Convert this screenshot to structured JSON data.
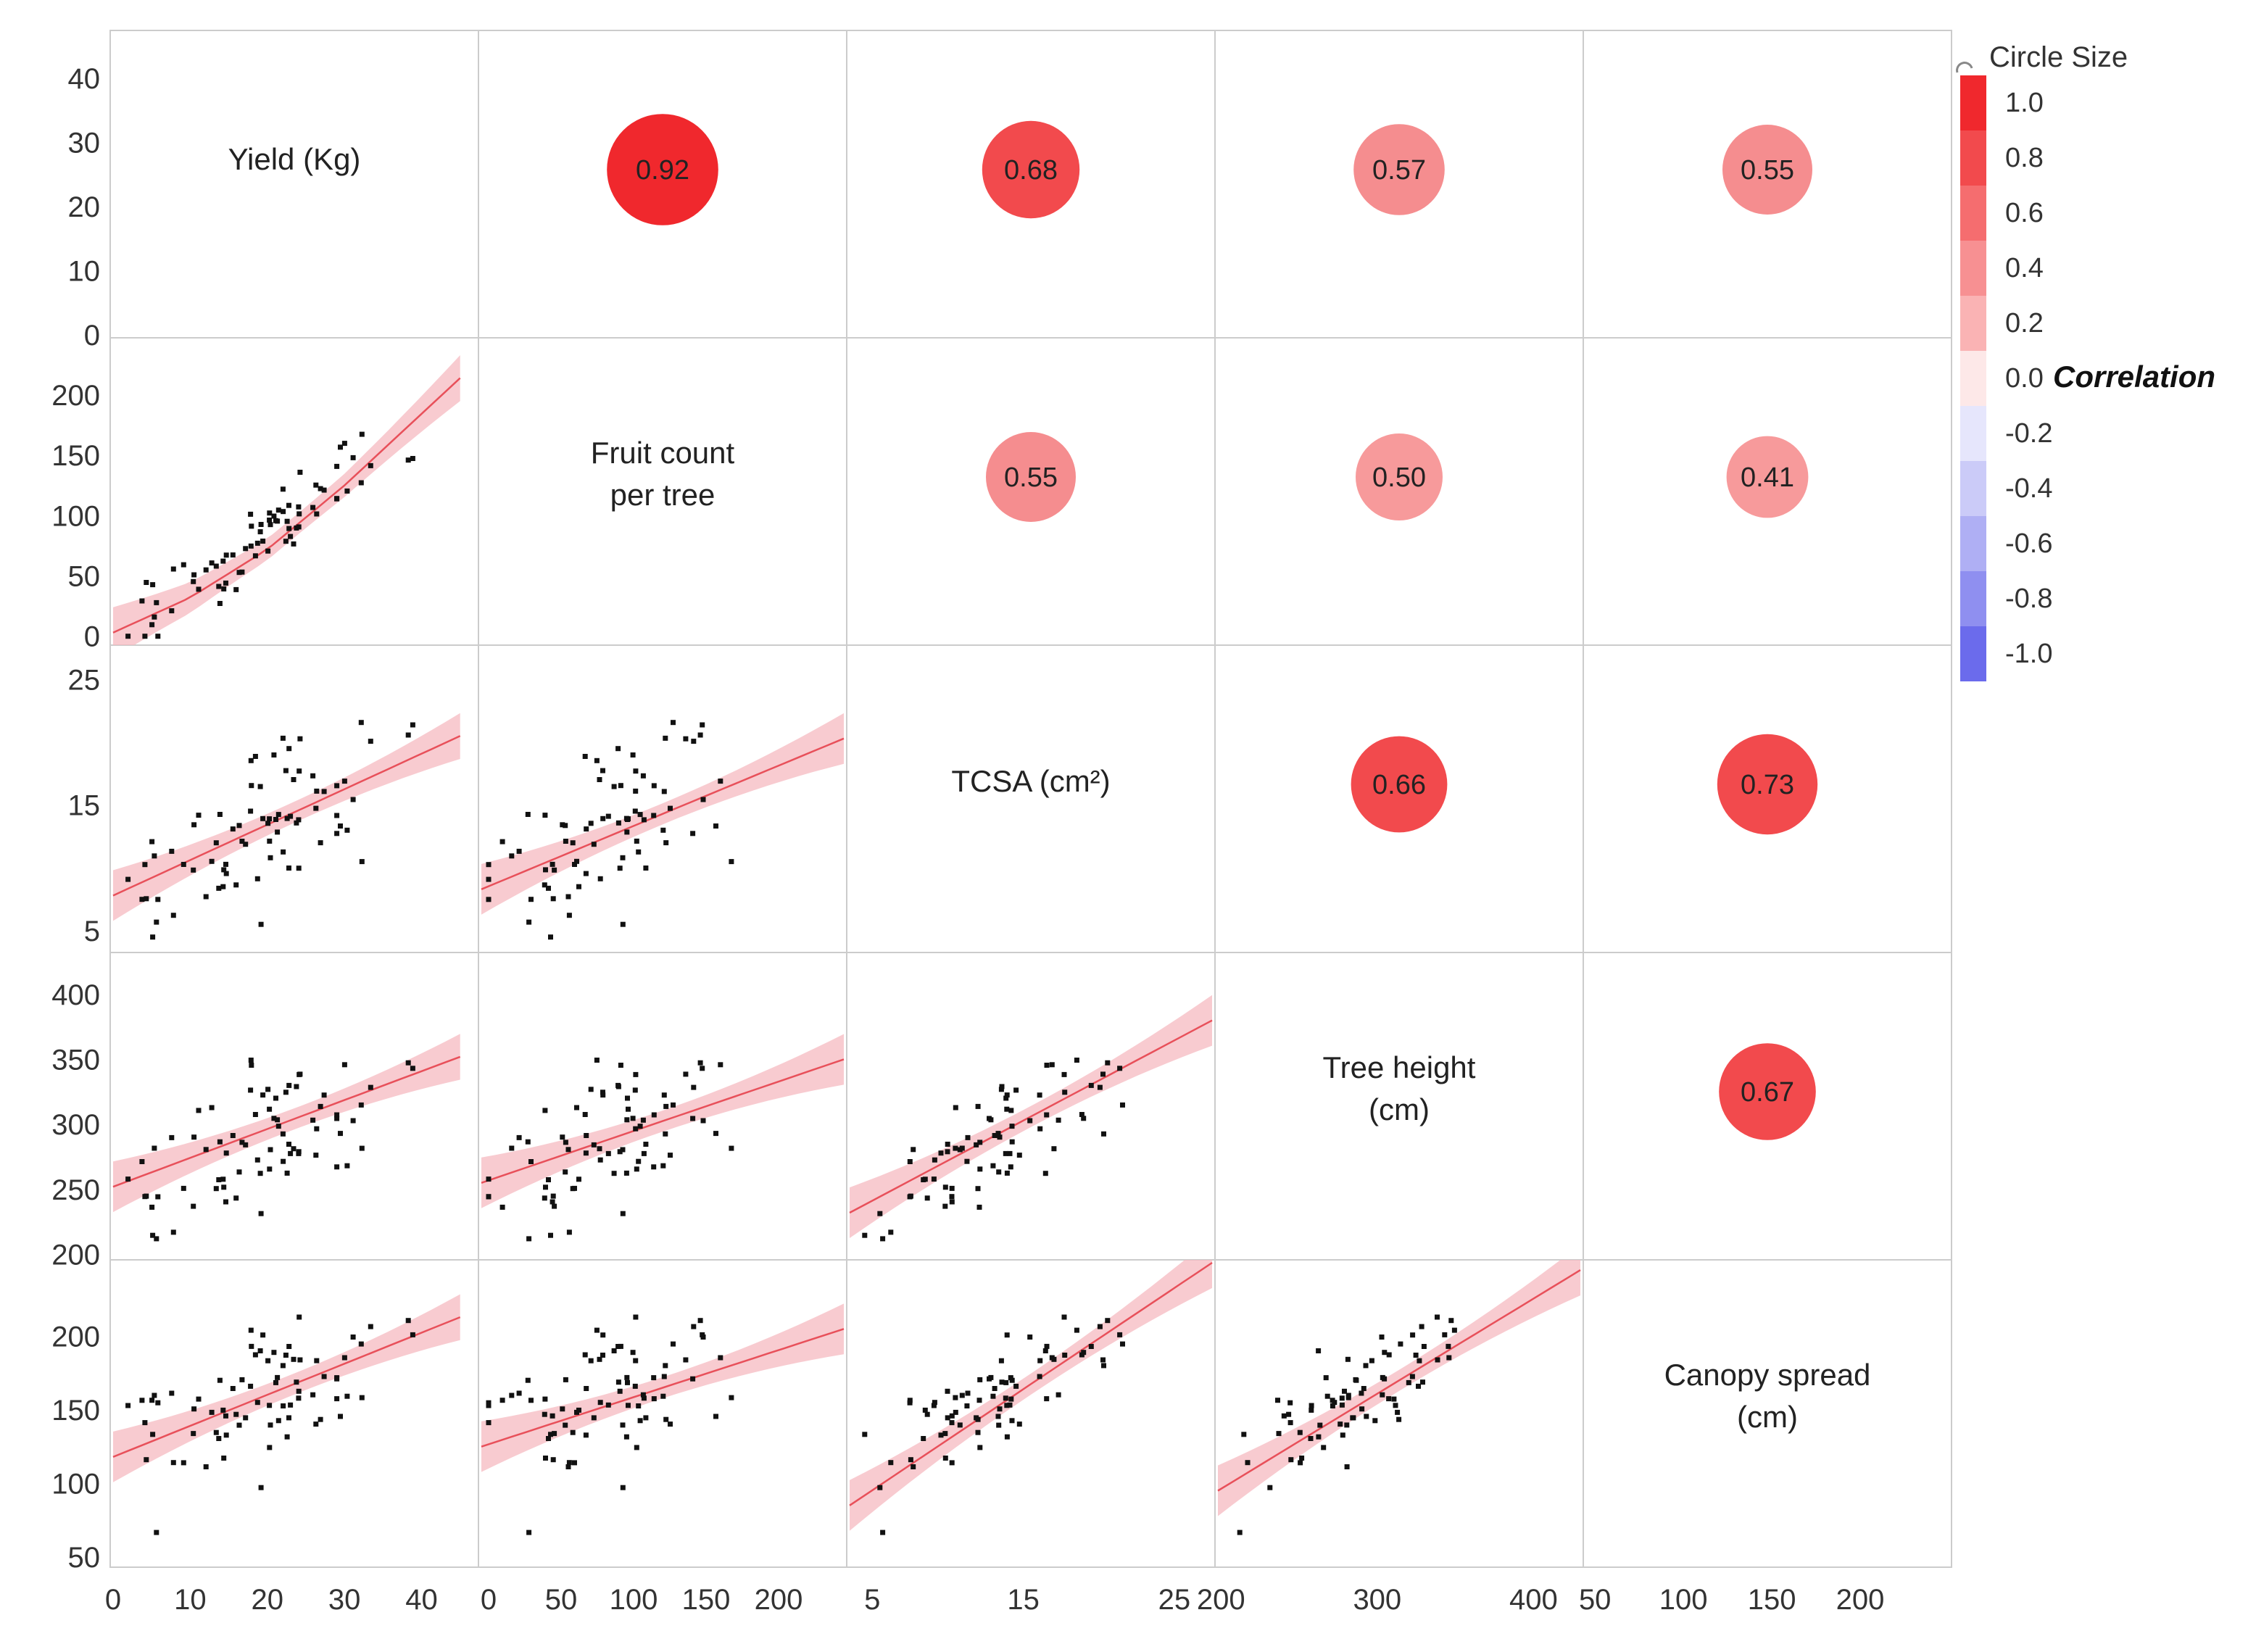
{
  "chart_data": {
    "type": "scatter-matrix",
    "variables": [
      {
        "name": "Yield (Kg)",
        "lines": [
          "Yield (Kg)"
        ],
        "range": [
          0,
          47
        ],
        "ticks": [
          0,
          10,
          20,
          30,
          40
        ]
      },
      {
        "name": "Fruit count per tree",
        "lines": [
          "Fruit count",
          "per tree"
        ],
        "range": [
          -5,
          245
        ],
        "ticks": [
          0,
          50,
          100,
          150,
          200
        ]
      },
      {
        "name": "TCSA (cm2)",
        "lines": [
          "TCSA (cm²)"
        ],
        "range": [
          3.5,
          27.5
        ],
        "ticks": [
          5,
          15,
          25
        ],
        "tick_labels_y": [
          "5",
          "15",
          "25"
        ]
      },
      {
        "name": "Tree height (cm)",
        "lines": [
          "Tree height",
          "(cm)"
        ],
        "range": [
          198,
          430
        ],
        "ticks": [
          200,
          250,
          300,
          350,
          400
        ],
        "x_tick_labels": [
          "200",
          "300",
          "400"
        ],
        "x_ticks": [
          200,
          300,
          400
        ]
      },
      {
        "name": "Canopy spread (cm)",
        "lines": [
          "Canopy spread",
          "(cm)"
        ],
        "range": [
          45,
          250
        ],
        "ticks": [
          50,
          100,
          150,
          200
        ],
        "y_tick_labels": [
          "50",
          "100",
          "150",
          "200"
        ]
      }
    ],
    "correlations": [
      {
        "row": 0,
        "col": 1,
        "value": 0.92,
        "label": "0.92"
      },
      {
        "row": 0,
        "col": 2,
        "value": 0.68,
        "label": "0.68"
      },
      {
        "row": 0,
        "col": 3,
        "value": 0.57,
        "label": "0.57"
      },
      {
        "row": 0,
        "col": 4,
        "value": 0.55,
        "label": "0.55"
      },
      {
        "row": 1,
        "col": 2,
        "value": 0.55,
        "label": "0.55"
      },
      {
        "row": 1,
        "col": 3,
        "value": 0.5,
        "label": "0.50"
      },
      {
        "row": 1,
        "col": 4,
        "value": 0.41,
        "label": "0.41"
      },
      {
        "row": 2,
        "col": 3,
        "value": 0.66,
        "label": "0.66"
      },
      {
        "row": 2,
        "col": 4,
        "value": 0.73,
        "label": "0.73"
      },
      {
        "row": 3,
        "col": 4,
        "value": 0.67,
        "label": "0.67"
      }
    ],
    "fits": [
      {
        "row": 1,
        "col": 0,
        "points": [
          [
            0,
            3
          ],
          [
            10,
            32
          ],
          [
            20,
            72
          ],
          [
            30,
            125
          ],
          [
            45,
            214
          ]
        ]
      },
      {
        "row": 2,
        "col": 0,
        "points": [
          [
            0,
            7.8
          ],
          [
            45,
            20.5
          ]
        ]
      },
      {
        "row": 2,
        "col": 1,
        "points": [
          [
            -5,
            8.3
          ],
          [
            245,
            20.3
          ]
        ]
      },
      {
        "row": 3,
        "col": 0,
        "points": [
          [
            0,
            252
          ],
          [
            45,
            352
          ]
        ]
      },
      {
        "row": 3,
        "col": 1,
        "points": [
          [
            -5,
            255
          ],
          [
            245,
            350
          ]
        ]
      },
      {
        "row": 3,
        "col": 2,
        "points": [
          [
            3.5,
            232
          ],
          [
            27.5,
            380
          ]
        ]
      },
      {
        "row": 4,
        "col": 0,
        "points": [
          [
            0,
            118
          ],
          [
            45,
            213
          ]
        ]
      },
      {
        "row": 4,
        "col": 1,
        "points": [
          [
            -5,
            125
          ],
          [
            245,
            205
          ]
        ]
      },
      {
        "row": 4,
        "col": 2,
        "points": [
          [
            3.5,
            85
          ],
          [
            27.5,
            250
          ]
        ]
      },
      {
        "row": 4,
        "col": 3,
        "points": [
          [
            198,
            95
          ],
          [
            430,
            245
          ]
        ]
      }
    ],
    "x_axis_ticks": [
      {
        "col": 0,
        "labels": [
          "0",
          "10",
          "20",
          "30",
          "40"
        ],
        "values": [
          0,
          10,
          20,
          30,
          40
        ]
      },
      {
        "col": 1,
        "labels": [
          "0",
          "50",
          "100",
          "150",
          "200"
        ],
        "values": [
          0,
          50,
          100,
          150,
          200
        ]
      },
      {
        "col": 2,
        "labels": [
          "5",
          "15",
          "25"
        ],
        "values": [
          5,
          15,
          25
        ]
      },
      {
        "col": 3,
        "labels": [
          "200",
          "300",
          "400"
        ],
        "values": [
          200,
          300,
          400
        ]
      },
      {
        "col": 4,
        "labels": [
          "50",
          "100",
          "150",
          "200"
        ],
        "values": [
          50,
          100,
          150,
          200
        ]
      }
    ],
    "y_axis_ticks": [
      {
        "row": 0,
        "labels": [
          "0",
          "10",
          "20",
          "30",
          "40"
        ],
        "values": [
          0,
          10,
          20,
          30,
          40
        ]
      },
      {
        "row": 1,
        "labels": [
          "0",
          "50",
          "100",
          "150",
          "200"
        ],
        "values": [
          0,
          50,
          100,
          150,
          200
        ]
      },
      {
        "row": 2,
        "labels": [
          "5",
          "15",
          "25"
        ],
        "values": [
          5,
          15,
          25
        ]
      },
      {
        "row": 3,
        "labels": [
          "200",
          "250",
          "300",
          "350",
          "400"
        ],
        "values": [
          200,
          250,
          300,
          350,
          400
        ]
      },
      {
        "row": 4,
        "labels": [
          "50",
          "100",
          "150",
          "200"
        ],
        "values": [
          50,
          100,
          150,
          200
        ]
      }
    ],
    "sample": {
      "n": 75,
      "seed": 7
    },
    "legend": {
      "circle_size_label": "Circle Size",
      "title": "Correlation",
      "position": "top-right",
      "values": [
        1.0,
        0.8,
        0.6,
        0.4,
        0.2,
        0.0,
        -0.2,
        -0.4,
        -0.6,
        -0.8,
        -1.0
      ],
      "labels": [
        "1.0",
        "0.8",
        "0.6",
        "0.4",
        "0.2",
        "0.0",
        "-0.2",
        "-0.4",
        "-0.6",
        "-0.8",
        "-1.0"
      ],
      "colors": [
        "#f0282d",
        "#f24a4d",
        "#f56d6f",
        "#f79092",
        "#fab3b4",
        "#fde8e8",
        "#e6e6fc",
        "#cbcbf8",
        "#afaff4",
        "#8f8ff0",
        "#6b6bec"
      ]
    },
    "colors": {
      "point": "#111111",
      "fit_line": "#e8505a",
      "band": "#f6b9c0",
      "grid": "#cccccc"
    }
  }
}
